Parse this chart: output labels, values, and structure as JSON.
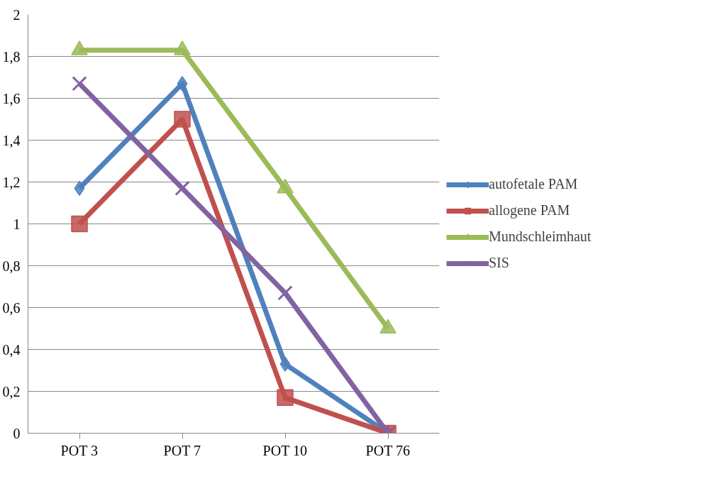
{
  "chart_data": {
    "type": "line",
    "categories": [
      "POT 3",
      "POT 7",
      "POT 10",
      "POT 76"
    ],
    "series": [
      {
        "name": "autofetale PAM",
        "color": "#4f81bd",
        "marker": "diamond",
        "values": [
          1.17,
          1.67,
          0.33,
          0
        ]
      },
      {
        "name": "allogene PAM",
        "color": "#c0504d",
        "marker": "square",
        "values": [
          1.0,
          1.5,
          0.17,
          0
        ]
      },
      {
        "name": "Mundschleimhaut",
        "color": "#9bbb59",
        "marker": "triangle",
        "values": [
          1.83,
          1.83,
          1.17,
          0.5
        ]
      },
      {
        "name": "SIS",
        "color": "#8064a2",
        "marker": "cross",
        "values": [
          1.67,
          1.17,
          0.67,
          0
        ]
      }
    ],
    "ylim": [
      0,
      2
    ],
    "yticks": [
      {
        "value": 0,
        "label": "0"
      },
      {
        "value": 0.2,
        "label": "0,2"
      },
      {
        "value": 0.4,
        "label": "0,4"
      },
      {
        "value": 0.6,
        "label": "0,6"
      },
      {
        "value": 0.8,
        "label": "0,8"
      },
      {
        "value": 1,
        "label": "1"
      },
      {
        "value": 1.2,
        "label": "1,2"
      },
      {
        "value": 1.4,
        "label": "1,4"
      },
      {
        "value": 1.6,
        "label": "1,6"
      },
      {
        "value": 1.8,
        "label": "1,8"
      },
      {
        "value": 2,
        "label": "2"
      }
    ],
    "grid": "y",
    "legend": "right",
    "line_style": "solid"
  }
}
